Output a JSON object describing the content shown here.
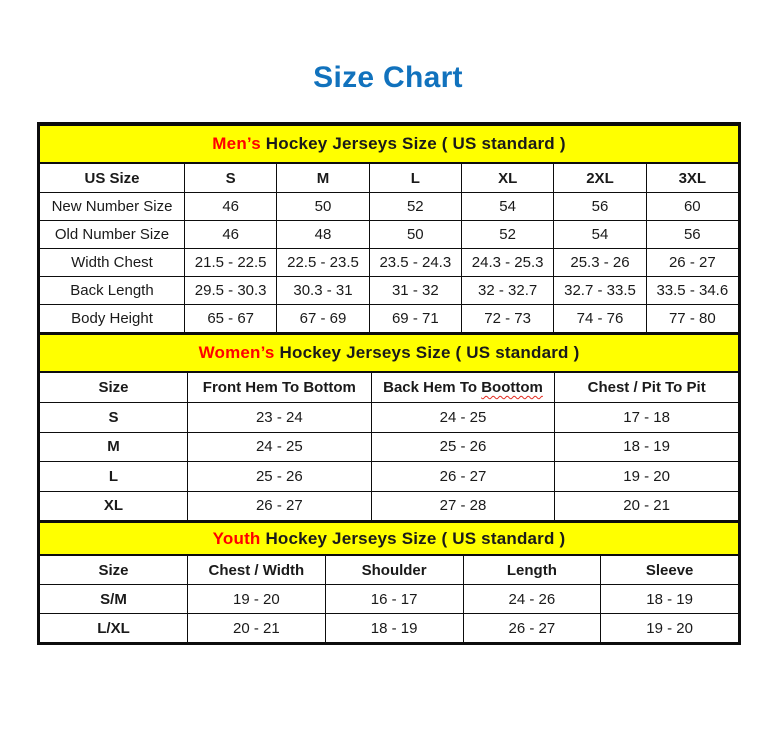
{
  "page": {
    "title": "Size Chart",
    "title_color": "#1172bd",
    "accent_color": "#ff0000",
    "band_color": "#ffff00"
  },
  "sections": [
    {
      "id": "mens",
      "title_accent": "Men’s",
      "title_rest": " Hockey Jerseys Size ( US standard )",
      "columns": [
        "US Size",
        "S",
        "M",
        "L",
        "XL",
        "2XL",
        "3XL"
      ],
      "rows": [
        {
          "label": "New Number Size",
          "values": [
            "46",
            "50",
            "52",
            "54",
            "56",
            "60"
          ]
        },
        {
          "label": "Old Number Size",
          "values": [
            "46",
            "48",
            "50",
            "52",
            "54",
            "56"
          ]
        },
        {
          "label": "Width Chest",
          "values": [
            "21.5 - 22.5",
            "22.5 - 23.5",
            "23.5 - 24.3",
            "24.3 - 25.3",
            "25.3 - 26",
            "26 - 27"
          ]
        },
        {
          "label": "Back Length",
          "values": [
            "29.5 - 30.3",
            "30.3 - 31",
            "31 - 32",
            "32 - 32.7",
            "32.7 - 33.5",
            "33.5 - 34.6"
          ]
        },
        {
          "label": "Body Height",
          "values": [
            "65 - 67",
            "67 - 69",
            "69 - 71",
            "72 - 73",
            "74 - 76",
            "77 - 80"
          ]
        }
      ]
    },
    {
      "id": "womens",
      "title_accent": "Women’s",
      "title_rest": " Hockey Jerseys Size ( US standard )",
      "columns": [
        "Size",
        "Front Hem To Bottom",
        "Back Hem To Boottom",
        "Chest / Pit To Pit"
      ],
      "squiggle": {
        "column_index": 2,
        "prefix": "Back Hem To ",
        "word": "Boottom"
      },
      "rows": [
        {
          "label": "S",
          "values": [
            "23 - 24",
            "24 - 25",
            "17 - 18"
          ]
        },
        {
          "label": "M",
          "values": [
            "24 - 25",
            "25 - 26",
            "18 - 19"
          ]
        },
        {
          "label": "L",
          "values": [
            "25 - 26",
            "26 - 27",
            "19 - 20"
          ]
        },
        {
          "label": "XL",
          "values": [
            "26 - 27",
            "27 - 28",
            "20 - 21"
          ]
        }
      ]
    },
    {
      "id": "youth",
      "title_accent": "Youth",
      "title_rest": " Hockey Jerseys Size ( US standard )",
      "columns": [
        "Size",
        "Chest / Width",
        "Shoulder",
        "Length",
        "Sleeve"
      ],
      "rows": [
        {
          "label": "S/M",
          "values": [
            "19 - 20",
            "16 - 17",
            "24 - 26",
            "18 - 19"
          ]
        },
        {
          "label": "L/XL",
          "values": [
            "20 - 21",
            "18 - 19",
            "26 - 27",
            "19 - 20"
          ]
        }
      ]
    }
  ]
}
